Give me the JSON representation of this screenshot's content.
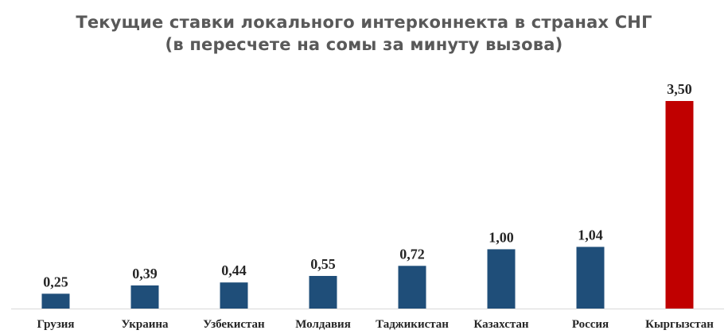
{
  "chart_data": {
    "type": "bar",
    "title_line1": "Текущие ставки локального интерконнекта в странах СНГ",
    "title_line2": "(в пересчете на сомы за минуту вызова)",
    "categories": [
      "Грузия",
      "Украина",
      "Узбекистан",
      "Молдавия",
      "Таджикистан",
      "Казахстан",
      "Россия",
      "Кыргызстан"
    ],
    "values": [
      0.25,
      0.39,
      0.44,
      0.55,
      0.72,
      1.0,
      1.04,
      3.5
    ],
    "value_labels": [
      "0,25",
      "0,39",
      "0,44",
      "0,55",
      "0,72",
      "1,00",
      "1,04",
      "3,50"
    ],
    "ylim": [
      0,
      3.5
    ],
    "grid": false,
    "legend": "none",
    "colors": {
      "default_bar": "#1f4e79",
      "highlight_bar": "#c00000",
      "highlight_index": 7,
      "axis": "#d9d9d9"
    }
  }
}
